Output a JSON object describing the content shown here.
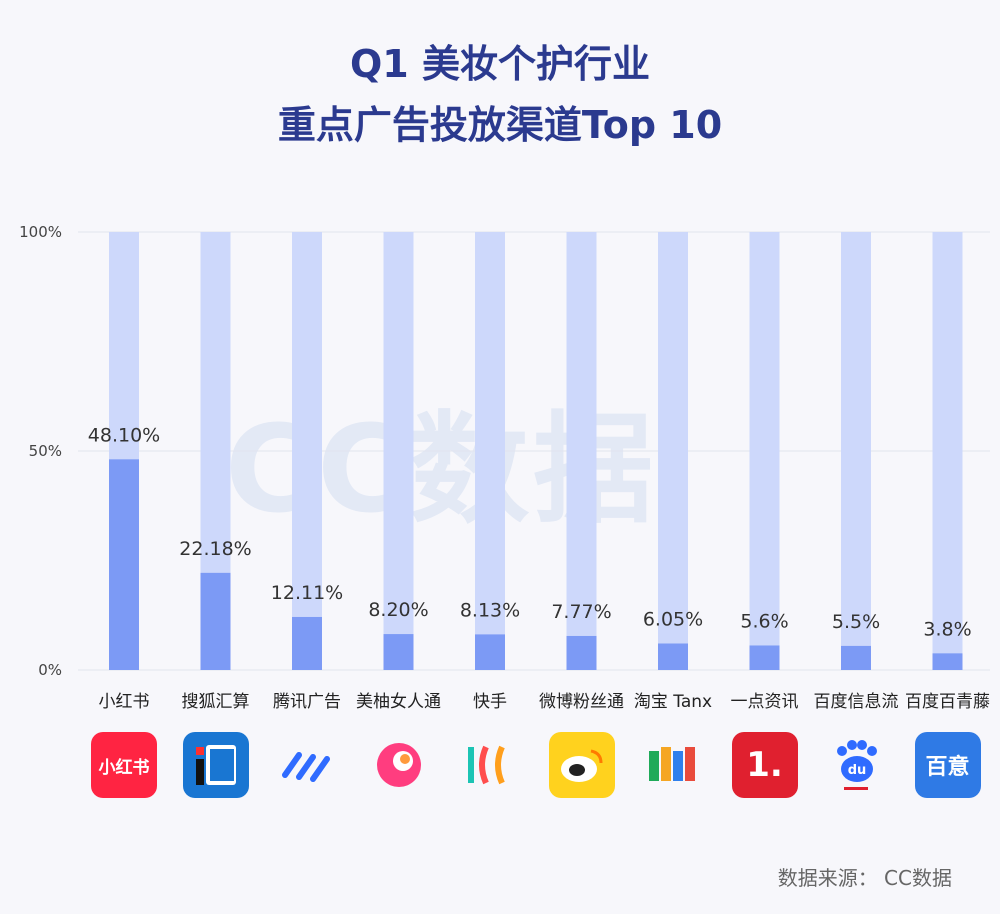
{
  "title_line1": "Q1 美妆个护行业",
  "title_line2": "重点广告投放渠道Top 10",
  "source": "数据来源：  CC数据",
  "watermark": "CC数据",
  "colors": {
    "bar_track": "#cdd8fb",
    "bar_fill": "#7c9af5",
    "title": "#2b3a8f"
  },
  "logos": [
    {
      "name": "xiaohongshu-logo",
      "text": "小红书"
    },
    {
      "name": "sougou-logo",
      "text": ""
    },
    {
      "name": "tencent-ads-logo",
      "text": ""
    },
    {
      "name": "meiyou-logo",
      "text": ""
    },
    {
      "name": "kuaishou-logo",
      "text": ""
    },
    {
      "name": "weibo-logo",
      "text": ""
    },
    {
      "name": "taobao-tanx-logo",
      "text": ""
    },
    {
      "name": "yidianzixun-logo",
      "text": "1."
    },
    {
      "name": "baidu-feed-logo",
      "text": "du"
    },
    {
      "name": "baidu-baiqing-logo",
      "text": "百意"
    }
  ],
  "chart_data": {
    "type": "bar",
    "categories": [
      "小红书",
      "搜狐汇算",
      "腾讯广告",
      "美柚女人通",
      "快手",
      "微博粉丝通",
      "淘宝 Tanx",
      "一点资讯",
      "百度信息流",
      "百度百青藤"
    ],
    "values": [
      48.1,
      22.18,
      12.11,
      8.2,
      8.13,
      7.77,
      6.05,
      5.6,
      5.5,
      3.8
    ],
    "value_labels": [
      "48.10%",
      "22.18%",
      "12.11%",
      "8.20%",
      "8.13%",
      "7.77%",
      "6.05%",
      "5.6%",
      "5.5%",
      "3.8%"
    ],
    "yticks": [
      "0%",
      "50%",
      "100%"
    ],
    "ytick_values": [
      0,
      50,
      100
    ],
    "ylim": [
      0,
      100
    ],
    "grid": true
  }
}
